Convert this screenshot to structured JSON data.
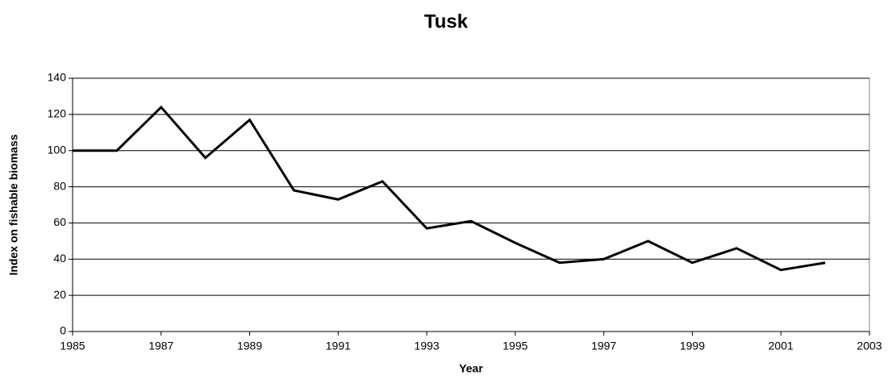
{
  "chart_data": {
    "type": "line",
    "title": "Tusk",
    "x_label": "Year",
    "y_label": "Index on fishable biomass",
    "x": [
      1985,
      1986,
      1987,
      1988,
      1989,
      1990,
      1991,
      1992,
      1993,
      1994,
      1995,
      1996,
      1997,
      1998,
      1999,
      2000,
      2001,
      2002
    ],
    "values": [
      100,
      100,
      124,
      96,
      117,
      78,
      73,
      83,
      57,
      61,
      49,
      38,
      40,
      50,
      38,
      46,
      34,
      38
    ],
    "color": "#000000",
    "xlim": [
      1985,
      2003
    ],
    "xticks": [
      1985,
      1987,
      1989,
      1991,
      1993,
      1995,
      1997,
      1999,
      2001,
      2003
    ],
    "ylim": [
      0,
      140
    ],
    "yticks": [
      0,
      20,
      40,
      60,
      80,
      100,
      120,
      140
    ],
    "grid": true
  }
}
